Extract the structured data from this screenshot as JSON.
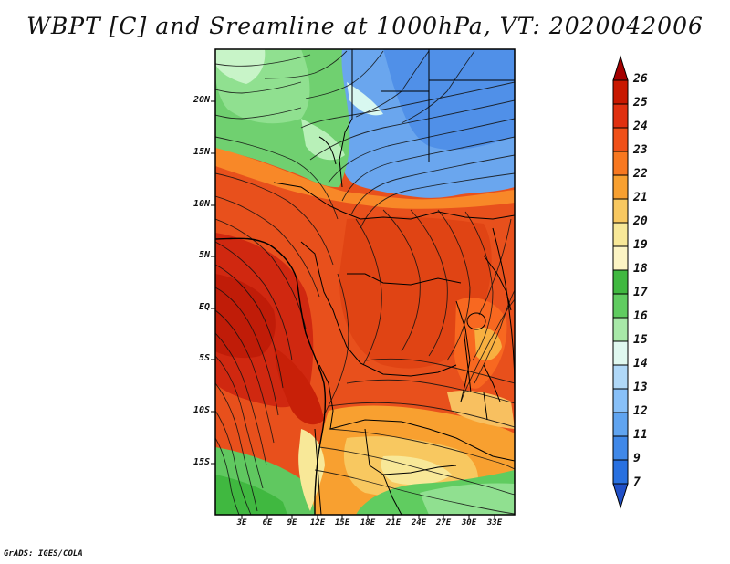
{
  "title": "WBPT [C] and Sreamline at 1000hPa, VT: 2020042006",
  "footer": "GrADS: IGES/COLA",
  "map": {
    "lat_labels": [
      "20N",
      "15N",
      "10N",
      "5N",
      "EQ",
      "5S",
      "10S",
      "15S"
    ],
    "lat_values": [
      20,
      15,
      10,
      5,
      0,
      -5,
      -10,
      -15
    ],
    "lon_labels": [
      "3E",
      "6E",
      "9E",
      "12E",
      "15E",
      "18E",
      "21E",
      "24E",
      "27E",
      "30E",
      "33E"
    ],
    "lon_values": [
      3,
      6,
      9,
      12,
      15,
      18,
      21,
      24,
      27,
      30,
      33
    ],
    "lat_range": [
      -19,
      24
    ],
    "lon_range": [
      0,
      34.5
    ]
  },
  "colorbar": {
    "labels": [
      "26",
      "25",
      "24",
      "23",
      "22",
      "21",
      "20",
      "19",
      "18",
      "17",
      "16",
      "15",
      "14",
      "13",
      "12",
      "11",
      "9",
      "7"
    ],
    "colors": [
      "#a50000",
      "#c81800",
      "#e03010",
      "#f05018",
      "#f87820",
      "#f8a030",
      "#f8c860",
      "#f8e898",
      "#40b840",
      "#60cc60",
      "#90e090",
      "#d8f8f0",
      "#b0d8f8",
      "#80bcf8",
      "#60a4f0",
      "#4088e8",
      "#2870e0",
      "#2050c8"
    ]
  }
}
